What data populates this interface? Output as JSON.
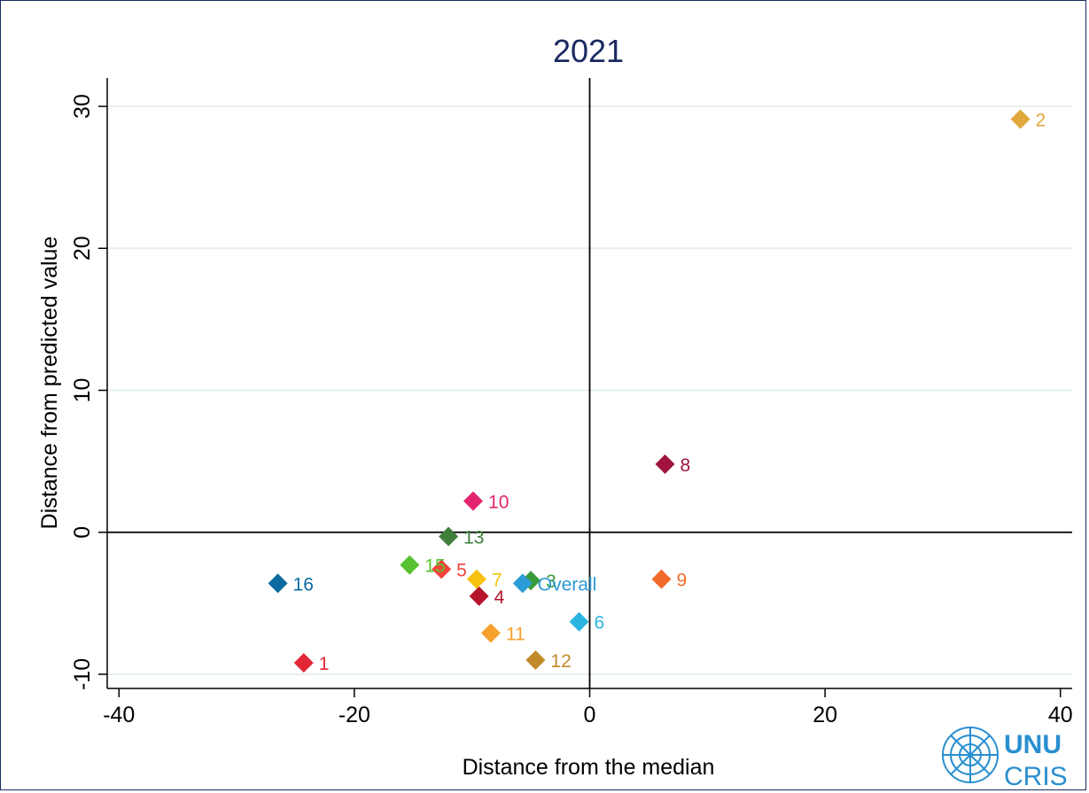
{
  "chart_data": {
    "type": "scatter",
    "title": "2021",
    "xlabel": "Distance from the median",
    "ylabel": "Distance from predicted value",
    "xlim": [
      -41,
      41
    ],
    "ylim": [
      -11,
      32
    ],
    "xticks": [
      -40,
      -20,
      0,
      20,
      40
    ],
    "xtick_labels": [
      "-40",
      "-20",
      "0",
      "20",
      "40"
    ],
    "yticks": [
      -10,
      0,
      10,
      20,
      30
    ],
    "ytick_labels": [
      "-10",
      "0",
      "10",
      "20",
      "30"
    ],
    "grid": "horizontal",
    "reference_lines": {
      "x": 0,
      "y": 0
    },
    "marker": "diamond",
    "points": [
      {
        "label": "1",
        "x": -24.3,
        "y": -9.2,
        "color": "#e32636"
      },
      {
        "label": "2",
        "x": 36.6,
        "y": 29.1,
        "color": "#e0a83c"
      },
      {
        "label": "3",
        "x": -5.0,
        "y": -3.4,
        "color": "#3a9a3a"
      },
      {
        "label": "4",
        "x": -9.4,
        "y": -4.5,
        "color": "#b5142b"
      },
      {
        "label": "5",
        "x": -12.6,
        "y": -2.6,
        "color": "#f2433c"
      },
      {
        "label": "6",
        "x": -0.9,
        "y": -6.3,
        "color": "#2ab5e0"
      },
      {
        "label": "7",
        "x": -9.6,
        "y": -3.3,
        "color": "#f6c20f"
      },
      {
        "label": "8",
        "x": 6.4,
        "y": 4.8,
        "color": "#a0153e"
      },
      {
        "label": "9",
        "x": 6.1,
        "y": -3.3,
        "color": "#f26a2a"
      },
      {
        "label": "10",
        "x": -9.9,
        "y": 2.2,
        "color": "#e3246e"
      },
      {
        "label": "11",
        "x": -8.4,
        "y": -7.1,
        "color": "#f6a12d"
      },
      {
        "label": "12",
        "x": -4.6,
        "y": -9.0,
        "color": "#c08a2a"
      },
      {
        "label": "13",
        "x": -12.0,
        "y": -0.3,
        "color": "#3e7f3a"
      },
      {
        "label": "15",
        "x": -15.3,
        "y": -2.3,
        "color": "#58c12f"
      },
      {
        "label": "16",
        "x": -26.5,
        "y": -3.6,
        "color": "#0b6aa0"
      },
      {
        "label": "Overall",
        "x": -5.7,
        "y": -3.6,
        "color": "#2b9bd6"
      }
    ]
  },
  "logo": {
    "line1": "UNU",
    "line2": "CRIS"
  },
  "colors": {
    "border": "#1b2a5e",
    "grid": "#e6eef0",
    "logo": "#2a8fd0"
  }
}
